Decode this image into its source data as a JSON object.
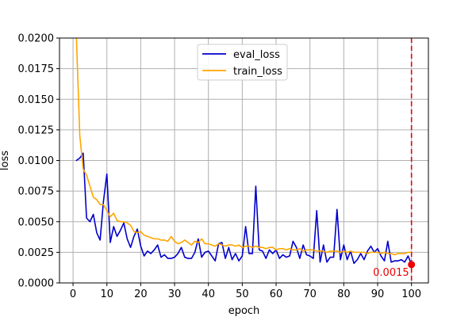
{
  "chart_data": {
    "type": "line",
    "xlabel": "epoch",
    "ylabel": "loss",
    "xlim": [
      -4,
      105
    ],
    "ylim": [
      0,
      0.02
    ],
    "grid": true,
    "legend_position": "upper center",
    "xticks": [
      0,
      10,
      20,
      30,
      40,
      50,
      60,
      70,
      80,
      90,
      100
    ],
    "xtick_labels": [
      "0",
      "10",
      "20",
      "30",
      "40",
      "50",
      "60",
      "70",
      "80",
      "90",
      "100"
    ],
    "yticks": [
      0,
      0.0025,
      0.005,
      0.0075,
      0.01,
      0.0125,
      0.015,
      0.0175,
      0.02
    ],
    "ytick_labels": [
      "0.0000",
      "0.0025",
      "0.0050",
      "0.0075",
      "0.0100",
      "0.0125",
      "0.0150",
      "0.0175",
      "0.0200"
    ],
    "series": [
      {
        "name": "eval_loss",
        "color": "#0000cc",
        "x": [
          1,
          2,
          3,
          4,
          5,
          6,
          7,
          8,
          9,
          10,
          11,
          12,
          13,
          14,
          15,
          16,
          17,
          18,
          19,
          20,
          21,
          22,
          23,
          24,
          25,
          26,
          27,
          28,
          29,
          30,
          31,
          32,
          33,
          34,
          35,
          36,
          37,
          38,
          39,
          40,
          41,
          42,
          43,
          44,
          45,
          46,
          47,
          48,
          49,
          50,
          51,
          52,
          53,
          54,
          55,
          56,
          57,
          58,
          59,
          60,
          61,
          62,
          63,
          64,
          65,
          66,
          67,
          68,
          69,
          70,
          71,
          72,
          73,
          74,
          75,
          76,
          77,
          78,
          79,
          80,
          81,
          82,
          83,
          84,
          85,
          86,
          87,
          88,
          89,
          90,
          91,
          92,
          93,
          94,
          95,
          96,
          97,
          98,
          99,
          100
        ],
        "y": [
          0.01,
          0.0102,
          0.0106,
          0.0053,
          0.005,
          0.0056,
          0.0041,
          0.0035,
          0.0067,
          0.0089,
          0.0033,
          0.0046,
          0.0038,
          0.0043,
          0.0049,
          0.0036,
          0.0029,
          0.0038,
          0.0044,
          0.003,
          0.0022,
          0.0026,
          0.0024,
          0.0027,
          0.0031,
          0.0021,
          0.0023,
          0.002,
          0.002,
          0.0021,
          0.0024,
          0.0029,
          0.0021,
          0.002,
          0.002,
          0.0025,
          0.0036,
          0.0021,
          0.0025,
          0.0026,
          0.0022,
          0.0018,
          0.0032,
          0.0033,
          0.002,
          0.0029,
          0.0019,
          0.0024,
          0.0018,
          0.0022,
          0.0046,
          0.0024,
          0.0024,
          0.0079,
          0.0027,
          0.0026,
          0.002,
          0.0027,
          0.0024,
          0.0027,
          0.002,
          0.0023,
          0.0021,
          0.0022,
          0.0034,
          0.0029,
          0.002,
          0.0031,
          0.0023,
          0.0022,
          0.002,
          0.0059,
          0.0017,
          0.0031,
          0.0017,
          0.0021,
          0.0021,
          0.006,
          0.0019,
          0.0031,
          0.0019,
          0.0026,
          0.0016,
          0.0019,
          0.0024,
          0.0019,
          0.0026,
          0.003,
          0.0025,
          0.0028,
          0.0022,
          0.0018,
          0.0034,
          0.0017,
          0.0018,
          0.0018,
          0.0019,
          0.0017,
          0.0022,
          0.0015
        ]
      },
      {
        "name": "train_loss",
        "color": "#ffa500",
        "x": [
          1,
          2,
          3,
          4,
          5,
          6,
          7,
          8,
          9,
          10,
          11,
          12,
          13,
          14,
          15,
          16,
          17,
          18,
          19,
          20,
          21,
          22,
          23,
          24,
          25,
          26,
          27,
          28,
          29,
          30,
          31,
          32,
          33,
          34,
          35,
          36,
          37,
          38,
          39,
          40,
          41,
          42,
          43,
          44,
          45,
          46,
          47,
          48,
          49,
          50,
          51,
          52,
          53,
          54,
          55,
          56,
          57,
          58,
          59,
          60,
          61,
          62,
          63,
          64,
          65,
          66,
          67,
          68,
          69,
          70,
          71,
          72,
          73,
          74,
          75,
          76,
          77,
          78,
          79,
          80,
          81,
          82,
          83,
          84,
          85,
          86,
          87,
          88,
          89,
          90,
          91,
          92,
          93,
          94,
          95,
          96,
          97,
          98,
          99,
          100
        ],
        "y": [
          0.02,
          0.012,
          0.0093,
          0.0088,
          0.0079,
          0.007,
          0.0068,
          0.0064,
          0.0064,
          0.0059,
          0.0054,
          0.0057,
          0.0051,
          0.005,
          0.005,
          0.0049,
          0.0047,
          0.0042,
          0.0041,
          0.0042,
          0.0039,
          0.0038,
          0.0037,
          0.0036,
          0.0036,
          0.0035,
          0.0035,
          0.0034,
          0.0038,
          0.0034,
          0.0032,
          0.0033,
          0.0035,
          0.0033,
          0.0031,
          0.0034,
          0.0033,
          0.0036,
          0.0032,
          0.0032,
          0.0031,
          0.003,
          0.0032,
          0.0031,
          0.003,
          0.0031,
          0.0031,
          0.003,
          0.0031,
          0.0029,
          0.003,
          0.003,
          0.0029,
          0.003,
          0.0029,
          0.0029,
          0.0028,
          0.0029,
          0.0029,
          0.0027,
          0.0028,
          0.0028,
          0.0027,
          0.0028,
          0.0027,
          0.0027,
          0.0028,
          0.0026,
          0.0027,
          0.0027,
          0.0027,
          0.0026,
          0.0026,
          0.0026,
          0.0025,
          0.0026,
          0.0026,
          0.0026,
          0.0025,
          0.0026,
          0.0025,
          0.0026,
          0.0025,
          0.0025,
          0.0025,
          0.0025,
          0.0024,
          0.0025,
          0.0025,
          0.0025,
          0.0024,
          0.0025,
          0.0024,
          0.0024,
          0.0023,
          0.0024,
          0.0024,
          0.0024,
          0.0025,
          0.0025
        ]
      }
    ],
    "annotations": [
      {
        "type": "vline",
        "x": 100,
        "color": "#ee0000",
        "style": "dashed"
      },
      {
        "type": "point",
        "x": 100,
        "y": 0.0015,
        "color": "#ee0000",
        "label": "0.0015"
      }
    ]
  }
}
